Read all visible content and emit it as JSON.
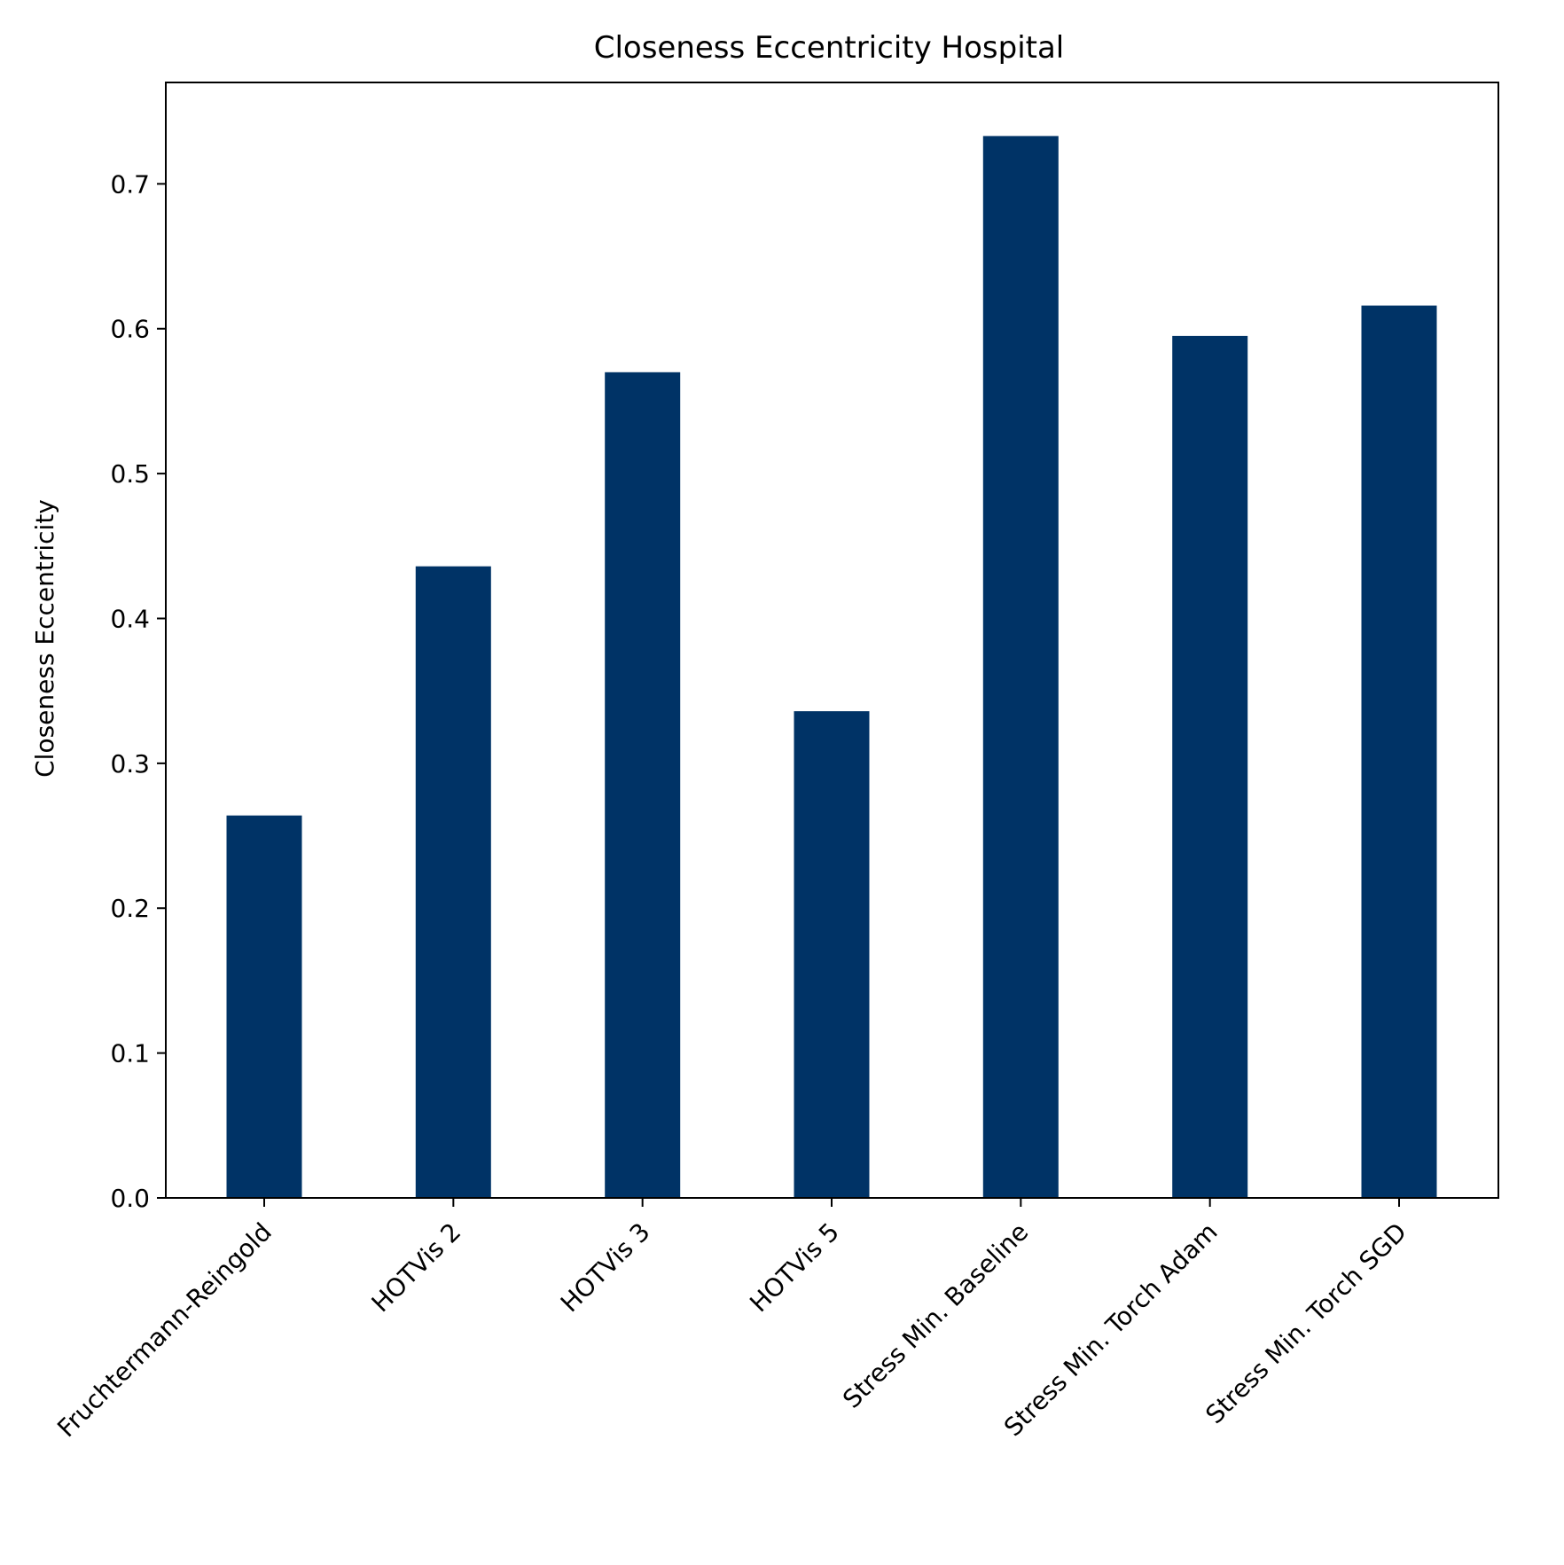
{
  "chart_data": {
    "type": "bar",
    "title": "Closeness Eccentricity Hospital",
    "xlabel": "",
    "ylabel": "Closeness Eccentricity",
    "categories": [
      "Fruchtermann-Reingold",
      "HOTVis 2",
      "HOTVis 3",
      "HOTVis 5",
      "Stress Min. Baseline",
      "Stress Min. Torch Adam",
      "Stress Min. Torch SGD"
    ],
    "values": [
      0.264,
      0.436,
      0.57,
      0.336,
      0.733,
      0.595,
      0.616
    ],
    "ylim": [
      0,
      0.77
    ],
    "yticks": [
      0.0,
      0.1,
      0.2,
      0.3,
      0.4,
      0.5,
      0.6,
      0.7
    ],
    "ytick_labels": [
      "0.0",
      "0.1",
      "0.2",
      "0.3",
      "0.4",
      "0.5",
      "0.6",
      "0.7"
    ],
    "bar_color": "#003366",
    "grid": false,
    "legend": "none"
  }
}
